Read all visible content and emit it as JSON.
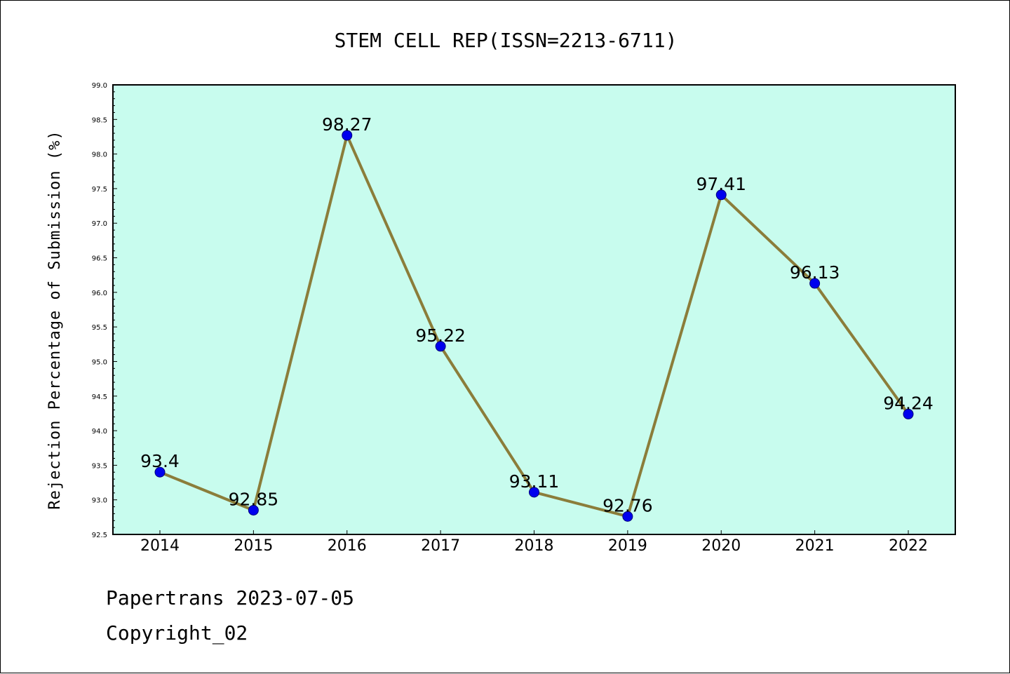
{
  "chart_data": {
    "type": "line",
    "title": "STEM CELL REP(ISSN=2213-6711)",
    "xlabel": "",
    "ylabel": "Rejection Percentage of Submission (%)",
    "categories": [
      "2014",
      "2015",
      "2016",
      "2017",
      "2018",
      "2019",
      "2020",
      "2021",
      "2022"
    ],
    "values": [
      93.4,
      92.85,
      98.27,
      95.22,
      93.11,
      92.76,
      97.41,
      96.13,
      94.24
    ],
    "value_labels": [
      "93.4",
      "92.85",
      "98.27",
      "95.22",
      "93.11",
      "92.76",
      "97.41",
      "96.13",
      "94.24"
    ],
    "ylim": [
      92.5,
      99.0
    ],
    "ytick_step": 0.5,
    "grid": false,
    "colors": {
      "plot_background": "#c8fcee",
      "line": "#8b7d3a",
      "marker": "#0000ee",
      "marker_edge": "#00007a"
    }
  },
  "footer": {
    "line1": "Papertrans 2023-07-05",
    "line2": "Copyright_02"
  }
}
